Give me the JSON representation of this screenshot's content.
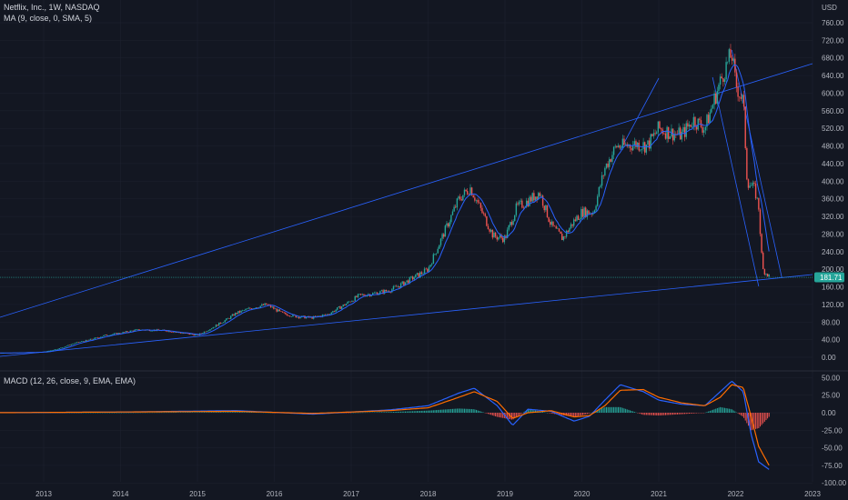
{
  "legend": {
    "symbol_line": "Netflix, Inc., 1W, NASDAQ",
    "ma_line": "MA (9, close, 0, SMA, 5)",
    "macd_line": "MACD (12, 26, close, 9, EMA, EMA)"
  },
  "price_axis": {
    "currency": "USD",
    "labels": [
      "760.00",
      "720.00",
      "680.00",
      "640.00",
      "600.00",
      "560.00",
      "520.00",
      "480.00",
      "440.00",
      "400.00",
      "360.00",
      "320.00",
      "280.00",
      "240.00",
      "200.00",
      "160.00",
      "120.00",
      "80.00",
      "40.00",
      "0.00"
    ],
    "last_price": "181.71"
  },
  "macd_axis": {
    "labels": [
      "50.00",
      "25.00",
      "0.00",
      "-25.00",
      "-50.00",
      "-75.00",
      "-100.00"
    ]
  },
  "time_axis": {
    "labels": [
      "2013",
      "2014",
      "2015",
      "2016",
      "2017",
      "2018",
      "2019",
      "2020",
      "2021",
      "2022",
      "2023"
    ]
  },
  "colors": {
    "background": "#131722",
    "grid": "#1e2230",
    "up": "#26a69a",
    "down": "#ef5350",
    "trendline": "#2962ff",
    "ma": "#2962ff",
    "macd": "#2962ff",
    "signal": "#ff6d00",
    "price_badge": "#26a69a"
  },
  "chart_data": {
    "type": "line",
    "x_label": "",
    "y_label": "",
    "price_ylim": [
      -20,
      780
    ],
    "macd_ylim": [
      -110,
      60
    ],
    "series": [
      {
        "name": "",
        "x": [
          2012.3,
          2012.6,
          2013.0,
          2013.2,
          2013.4,
          2013.6,
          2013.8,
          2014.0,
          2014.2,
          2014.4,
          2014.6,
          2014.8,
          2015.0,
          2015.2,
          2015.4,
          2015.5,
          2015.7,
          2015.9,
          2016.1,
          2016.3,
          2016.5,
          2016.7,
          2016.9,
          2017.1,
          2017.3,
          2017.5,
          2017.7,
          2017.9,
          2018.0,
          2018.2,
          2018.4,
          2018.55,
          2018.7,
          2018.85,
          2019.0,
          2019.15,
          2019.3,
          2019.45,
          2019.6,
          2019.75,
          2019.9,
          2020.0,
          2020.15,
          2020.3,
          2020.45,
          2020.55,
          2020.7,
          2020.85,
          2021.0,
          2021.15,
          2021.3,
          2021.45,
          2021.6,
          2021.75,
          2021.85,
          2021.95,
          2022.0,
          2022.1,
          2022.15,
          2022.25,
          2022.3,
          2022.35,
          2022.45
        ],
        "y": [
          10,
          10,
          12,
          20,
          32,
          40,
          50,
          55,
          62,
          62,
          60,
          55,
          50,
          68,
          88,
          100,
          112,
          120,
          100,
          92,
          90,
          98,
          118,
          140,
          145,
          152,
          170,
          190,
          200,
          280,
          360,
          385,
          330,
          275,
          270,
          340,
          355,
          375,
          300,
          270,
          310,
          330,
          330,
          430,
          480,
          480,
          485,
          480,
          520,
          510,
          505,
          540,
          520,
          600,
          650,
          690,
          620,
          580,
          400,
          380,
          340,
          200,
          181.71
        ]
      }
    ],
    "macd": {
      "x": [
        2012.3,
        2014.0,
        2015.5,
        2016.5,
        2017.5,
        2018.0,
        2018.4,
        2018.6,
        2018.9,
        2019.1,
        2019.3,
        2019.6,
        2019.9,
        2020.1,
        2020.3,
        2020.5,
        2020.8,
        2021.0,
        2021.3,
        2021.6,
        2021.8,
        2021.95,
        2022.1,
        2022.2,
        2022.3,
        2022.45
      ],
      "macd": [
        0,
        1,
        3,
        -2,
        4,
        10,
        28,
        35,
        10,
        -18,
        5,
        2,
        -12,
        -5,
        18,
        40,
        30,
        18,
        12,
        10,
        30,
        45,
        30,
        -30,
        -70,
        -82
      ],
      "signal": [
        0,
        1,
        2,
        -1,
        3,
        7,
        22,
        30,
        16,
        -8,
        0,
        3,
        -6,
        -4,
        10,
        32,
        33,
        22,
        14,
        10,
        22,
        40,
        36,
        -5,
        -48,
        -78
      ]
    }
  }
}
